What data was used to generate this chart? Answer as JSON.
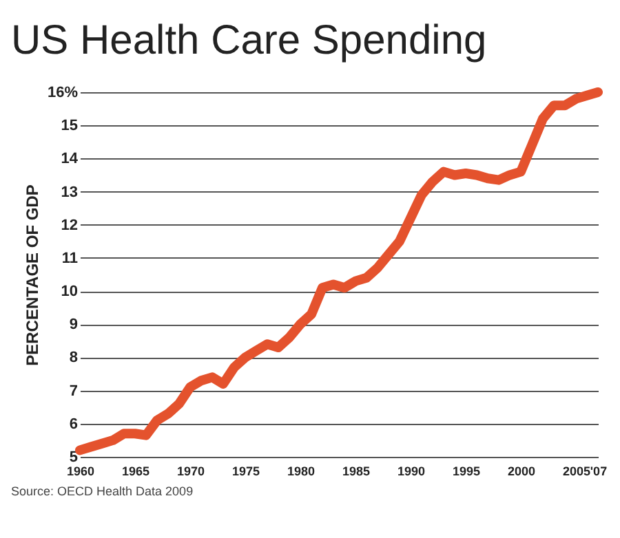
{
  "chart_data": {
    "type": "line",
    "title": "US Health Care Spending",
    "ylabel": "PERCENTAGE OF GDP",
    "annotations": [
      "Source: OECD Health Data 2009"
    ],
    "x": [
      1960,
      1961,
      1962,
      1963,
      1964,
      1965,
      1966,
      1967,
      1968,
      1969,
      1970,
      1971,
      1972,
      1973,
      1974,
      1975,
      1976,
      1977,
      1978,
      1979,
      1980,
      1981,
      1982,
      1983,
      1984,
      1985,
      1986,
      1987,
      1988,
      1989,
      1990,
      1991,
      1992,
      1993,
      1994,
      1995,
      1996,
      1997,
      1998,
      1999,
      2000,
      2001,
      2002,
      2003,
      2004,
      2005,
      2006,
      2007
    ],
    "series": [
      {
        "color": "#e4522d",
        "values": [
          5.2,
          5.3,
          5.4,
          5.5,
          5.7,
          5.7,
          5.65,
          6.1,
          6.3,
          6.6,
          7.1,
          7.3,
          7.4,
          7.2,
          7.7,
          8.0,
          8.2,
          8.4,
          8.3,
          8.6,
          9.0,
          9.3,
          10.1,
          10.2,
          10.1,
          10.3,
          10.4,
          10.7,
          11.1,
          11.5,
          12.2,
          12.9,
          13.3,
          13.6,
          13.5,
          13.55,
          13.5,
          13.4,
          13.35,
          13.5,
          13.6,
          14.4,
          15.2,
          15.6,
          15.6,
          15.8,
          15.9,
          16.0
        ]
      }
    ],
    "xlim": [
      1960,
      2007
    ],
    "xticks": [
      1960,
      1965,
      1970,
      1975,
      1980,
      1985,
      1990,
      1995,
      2000,
      2005,
      {
        "value": 2007,
        "label": "'07"
      }
    ],
    "ylim": [
      5,
      16
    ],
    "yticks": [
      5,
      6,
      7,
      8,
      9,
      10,
      11,
      12,
      13,
      14,
      15,
      {
        "value": 16,
        "label": "16%"
      }
    ],
    "grid": "y",
    "marker": "none",
    "line_style": "solid",
    "legend": false
  }
}
